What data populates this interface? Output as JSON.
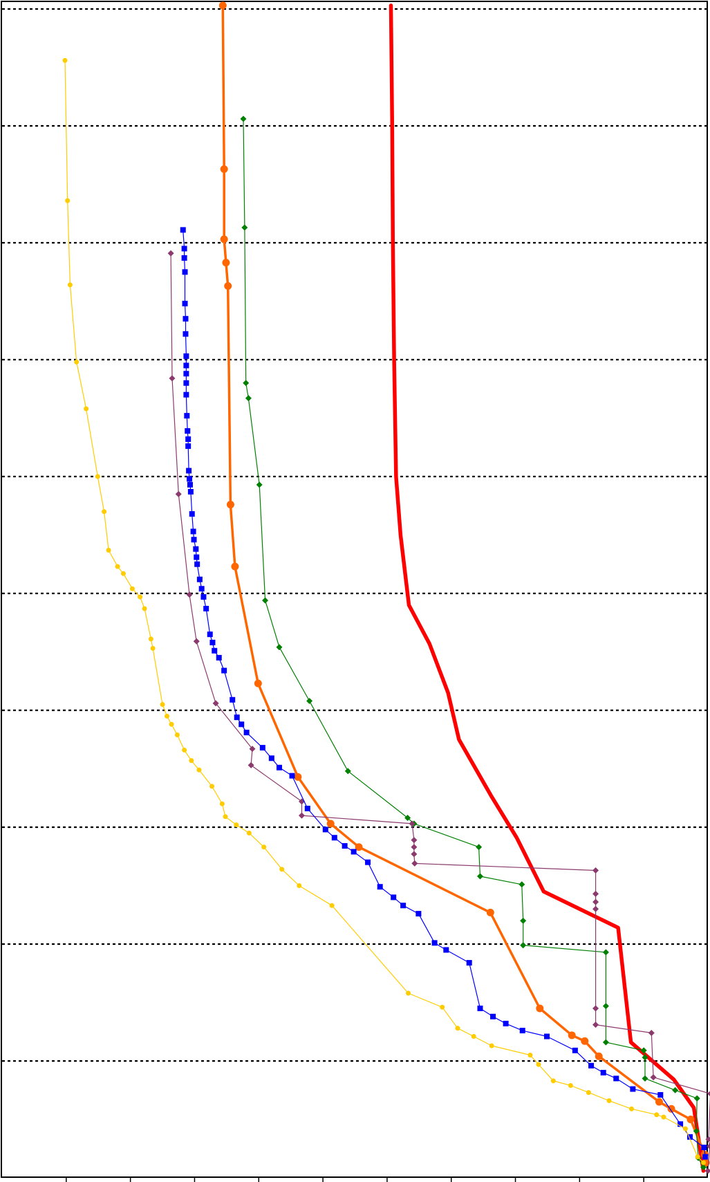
{
  "chart_data": {
    "type": "line",
    "title": "",
    "xlabel": "",
    "ylabel": "",
    "xlim": [
      0,
      11
    ],
    "ylim": [
      0,
      100
    ],
    "grid": {
      "y": true,
      "x": false,
      "style": "dotted"
    },
    "legend": "none",
    "y_gridlines": [
      10,
      20,
      30,
      40,
      50,
      60,
      70,
      80,
      90,
      100
    ],
    "x_ticks": [
      1,
      2,
      3,
      4,
      5,
      6,
      7,
      8,
      9,
      10
    ],
    "series": [
      {
        "color": "#ff0000",
        "marker": "none",
        "width": 5.5,
        "points": [
          [
            6.06,
            100.3
          ],
          [
            6.08,
            90.0
          ],
          [
            6.09,
            80.0
          ],
          [
            6.11,
            70.0
          ],
          [
            6.14,
            60.0
          ],
          [
            6.21,
            55.0
          ],
          [
            6.34,
            49.0
          ],
          [
            6.66,
            45.7
          ],
          [
            6.95,
            41.5
          ],
          [
            7.12,
            37.5
          ],
          [
            7.62,
            32.7
          ],
          [
            8.02,
            29.1
          ],
          [
            8.44,
            24.5
          ],
          [
            9.6,
            21.4
          ],
          [
            9.8,
            11.6
          ],
          [
            10.47,
            8.4
          ],
          [
            10.78,
            6.0
          ],
          [
            10.93,
            0.6
          ]
        ]
      },
      {
        "color": "#ff6600",
        "marker": "circle",
        "width": 3.5,
        "points": [
          [
            3.44,
            100.3
          ],
          [
            3.46,
            86.3
          ],
          [
            3.46,
            80.3
          ],
          [
            3.49,
            78.3
          ],
          [
            3.52,
            76.3
          ],
          [
            3.56,
            57.6
          ],
          [
            3.63,
            52.3
          ],
          [
            3.99,
            42.3
          ],
          [
            4.61,
            34.3
          ],
          [
            5.12,
            30.3
          ],
          [
            5.56,
            28.3
          ],
          [
            7.61,
            22.7
          ],
          [
            8.38,
            14.5
          ],
          [
            8.88,
            12.2
          ],
          [
            9.08,
            11.7
          ],
          [
            9.3,
            10.4
          ],
          [
            10.24,
            6.5
          ],
          [
            10.43,
            5.9
          ],
          [
            10.73,
            5.0
          ],
          [
            10.95,
            2.0
          ],
          [
            10.97,
            1.3
          ]
        ]
      },
      {
        "color": "#008000",
        "marker": "diamond",
        "width": 1.2,
        "points": [
          [
            3.76,
            90.6
          ],
          [
            3.78,
            81.3
          ],
          [
            3.8,
            68.0
          ],
          [
            3.84,
            66.7
          ],
          [
            4.01,
            59.3
          ],
          [
            4.1,
            49.4
          ],
          [
            4.32,
            45.4
          ],
          [
            4.79,
            40.8
          ],
          [
            5.39,
            34.8
          ],
          [
            6.32,
            30.8
          ],
          [
            6.42,
            30.3
          ],
          [
            7.43,
            28.3
          ],
          [
            7.45,
            25.8
          ],
          [
            8.1,
            25.1
          ],
          [
            8.12,
            22.0
          ],
          [
            8.12,
            19.9
          ],
          [
            9.41,
            19.3
          ],
          [
            9.41,
            14.7
          ],
          [
            9.41,
            11.6
          ],
          [
            10.0,
            10.9
          ],
          [
            10.02,
            10.3
          ],
          [
            10.02,
            8.5
          ],
          [
            10.49,
            7.5
          ],
          [
            10.83,
            6.8
          ],
          [
            10.82,
            4.0
          ],
          [
            10.85,
            1.7
          ],
          [
            10.93,
            0.9
          ]
        ]
      },
      {
        "color": "#8b3a6e",
        "marker": "diamond",
        "width": 1.2,
        "points": [
          [
            2.63,
            79.1
          ],
          [
            2.65,
            68.4
          ],
          [
            2.75,
            58.5
          ],
          [
            2.92,
            49.9
          ],
          [
            3.03,
            45.9
          ],
          [
            3.33,
            40.6
          ],
          [
            3.9,
            36.7
          ],
          [
            3.88,
            35.3
          ],
          [
            4.67,
            32.2
          ],
          [
            4.67,
            31.0
          ],
          [
            6.39,
            30.3
          ],
          [
            6.42,
            28.9
          ],
          [
            6.42,
            28.3
          ],
          [
            6.42,
            27.7
          ],
          [
            6.43,
            26.9
          ],
          [
            9.25,
            26.3
          ],
          [
            9.25,
            24.3
          ],
          [
            9.25,
            23.6
          ],
          [
            9.25,
            23.0
          ],
          [
            9.25,
            14.5
          ],
          [
            9.25,
            13.1
          ],
          [
            10.12,
            12.4
          ],
          [
            10.15,
            8.6
          ],
          [
            11.04,
            7.2
          ],
          [
            11.01,
            3.3
          ],
          [
            11.03,
            2.7
          ],
          [
            11.0,
            0.6
          ]
        ]
      },
      {
        "color": "#0000ff",
        "marker": "square",
        "width": 1.2,
        "points": [
          [
            2.82,
            81.1
          ],
          [
            2.84,
            79.5
          ],
          [
            2.84,
            78.7
          ],
          [
            2.85,
            77.5
          ],
          [
            2.85,
            74.8
          ],
          [
            2.86,
            73.5
          ],
          [
            2.86,
            72.2
          ],
          [
            2.87,
            70.3
          ],
          [
            2.87,
            69.5
          ],
          [
            2.87,
            68.8
          ],
          [
            2.87,
            68.0
          ],
          [
            2.87,
            67.0
          ],
          [
            2.88,
            65.2
          ],
          [
            2.89,
            63.9
          ],
          [
            2.9,
            63.2
          ],
          [
            2.9,
            62.6
          ],
          [
            2.91,
            60.5
          ],
          [
            2.92,
            59.8
          ],
          [
            2.93,
            59.3
          ],
          [
            2.94,
            58.7
          ],
          [
            2.96,
            56.8
          ],
          [
            2.98,
            55.3
          ],
          [
            2.99,
            54.6
          ],
          [
            3.02,
            53.8
          ],
          [
            3.03,
            53.1
          ],
          [
            3.04,
            52.5
          ],
          [
            3.08,
            51.2
          ],
          [
            3.11,
            50.4
          ],
          [
            3.14,
            49.7
          ],
          [
            3.18,
            48.7
          ],
          [
            3.24,
            46.5
          ],
          [
            3.28,
            45.8
          ],
          [
            3.31,
            45.1
          ],
          [
            3.38,
            44.5
          ],
          [
            3.46,
            43.4
          ],
          [
            3.59,
            40.9
          ],
          [
            3.66,
            39.4
          ],
          [
            3.73,
            38.8
          ],
          [
            3.81,
            38.1
          ],
          [
            4.06,
            36.8
          ],
          [
            4.2,
            35.9
          ],
          [
            4.32,
            35.1
          ],
          [
            4.52,
            34.4
          ],
          [
            4.76,
            31.6
          ],
          [
            5.04,
            29.8
          ],
          [
            5.18,
            29.1
          ],
          [
            5.34,
            28.4
          ],
          [
            5.48,
            27.9
          ],
          [
            5.7,
            27.0
          ],
          [
            5.89,
            24.9
          ],
          [
            6.1,
            24.0
          ],
          [
            6.25,
            23.3
          ],
          [
            6.49,
            22.6
          ],
          [
            6.74,
            20.1
          ],
          [
            6.92,
            19.5
          ],
          [
            7.28,
            18.4
          ],
          [
            7.45,
            14.5
          ],
          [
            7.65,
            13.8
          ],
          [
            7.85,
            13.2
          ],
          [
            8.11,
            12.6
          ],
          [
            8.49,
            12.1
          ],
          [
            8.93,
            10.9
          ],
          [
            9.18,
            9.6
          ],
          [
            9.37,
            9.0
          ],
          [
            9.57,
            8.5
          ],
          [
            9.83,
            7.6
          ],
          [
            10.26,
            7.1
          ],
          [
            10.57,
            4.6
          ],
          [
            10.72,
            3.5
          ],
          [
            10.94,
            2.6
          ],
          [
            10.96,
            1.8
          ]
        ]
      },
      {
        "color": "#ffcc00",
        "marker": "circle-small",
        "width": 1.2,
        "points": [
          [
            0.98,
            95.6
          ],
          [
            1.02,
            83.6
          ],
          [
            1.06,
            76.4
          ],
          [
            1.16,
            69.8
          ],
          [
            1.31,
            65.8
          ],
          [
            1.49,
            60.0
          ],
          [
            1.59,
            57.0
          ],
          [
            1.66,
            53.7
          ],
          [
            1.8,
            52.3
          ],
          [
            1.89,
            51.7
          ],
          [
            2.03,
            50.4
          ],
          [
            2.15,
            49.7
          ],
          [
            2.22,
            48.7
          ],
          [
            2.32,
            46.1
          ],
          [
            2.35,
            45.3
          ],
          [
            2.5,
            40.5
          ],
          [
            2.57,
            39.5
          ],
          [
            2.64,
            38.8
          ],
          [
            2.73,
            37.9
          ],
          [
            2.84,
            36.6
          ],
          [
            2.95,
            35.7
          ],
          [
            3.07,
            34.9
          ],
          [
            3.27,
            33.5
          ],
          [
            3.43,
            32.0
          ],
          [
            3.48,
            30.9
          ],
          [
            3.65,
            30.2
          ],
          [
            3.85,
            29.5
          ],
          [
            4.08,
            28.3
          ],
          [
            4.36,
            26.4
          ],
          [
            4.63,
            25.0
          ],
          [
            5.14,
            23.3
          ],
          [
            6.33,
            15.8
          ],
          [
            6.86,
            14.6
          ],
          [
            7.1,
            12.8
          ],
          [
            7.35,
            12.1
          ],
          [
            7.63,
            11.3
          ],
          [
            8.23,
            10.5
          ],
          [
            8.36,
            9.7
          ],
          [
            8.59,
            8.3
          ],
          [
            8.86,
            7.9
          ],
          [
            9.14,
            7.3
          ],
          [
            9.46,
            6.6
          ],
          [
            9.81,
            5.9
          ],
          [
            10.2,
            5.4
          ],
          [
            10.31,
            5.2
          ],
          [
            10.65,
            4.2
          ],
          [
            10.84,
            1.8
          ],
          [
            10.93,
            1.3
          ]
        ]
      }
    ]
  }
}
